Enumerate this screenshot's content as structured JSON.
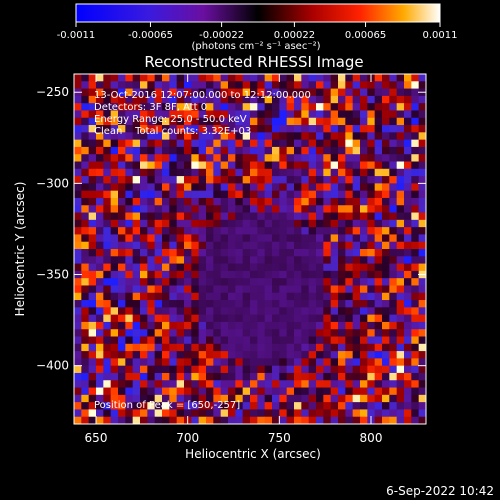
{
  "chart_data": {
    "type": "heatmap",
    "title": "Reconstructed RHESSI Image",
    "xlabel": "Heliocentric X (arcsec)",
    "ylabel": "Heliocentric Y (arcsec)",
    "xlim": [
      638,
      830
    ],
    "ylim": [
      -432,
      -240
    ],
    "x_ticks": [
      650,
      700,
      750,
      800
    ],
    "y_ticks": [
      -250,
      -300,
      -350,
      -400
    ],
    "colorbar": {
      "range": [
        -0.0011,
        0.0011
      ],
      "tick_values": [
        -0.0011,
        -0.00065,
        -0.00022,
        0.00022,
        0.00065,
        0.0011
      ],
      "tick_labels": [
        "-0.0011",
        "-0.00065",
        "-0.00022",
        "0.00022",
        "0.00065",
        "0.0011"
      ],
      "unit_label": "(photons cm⁻² s⁻¹ asec⁻²)"
    },
    "annotations": [
      "13-Oct-2016 12:07:00.000 to 12:12:00.000",
      "Detectors: 3F 8F, Att 0",
      "Energy Range: 25.0 - 50.0 keV",
      "Clean    Total counts: 3.32E+03"
    ],
    "peak_label": "Position of Peak = [650,-257]",
    "peak": [
      650,
      -257
    ],
    "grid_size": [
      48,
      48
    ]
  },
  "footer": {
    "timestamp": "6-Sep-2022 10:42"
  }
}
